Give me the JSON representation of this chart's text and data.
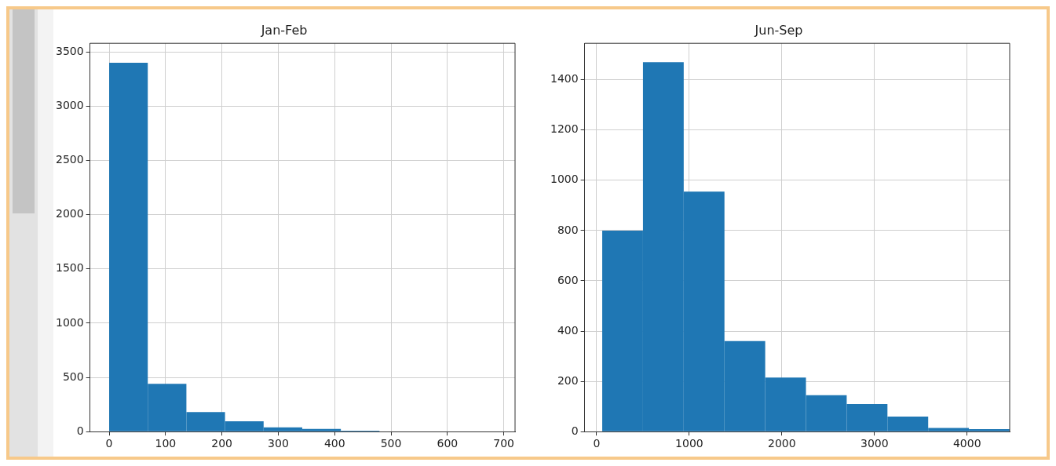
{
  "chart_data": [
    {
      "type": "histogram",
      "title": "Jan-Feb",
      "bins": [
        0,
        68.5,
        137,
        205.5,
        274,
        342.5,
        411,
        479.5,
        548,
        616.5,
        685
      ],
      "values": [
        3400,
        440,
        180,
        95,
        40,
        25,
        8,
        4,
        null,
        null
      ],
      "color": "#1f77b4",
      "xlim": [
        -34,
        720
      ],
      "xticks": [
        0,
        100,
        200,
        300,
        400,
        500,
        600,
        700
      ],
      "ylim": [
        0,
        3580
      ],
      "yticks": [
        0,
        500,
        1000,
        1500,
        2000,
        2500,
        3000,
        3500
      ],
      "grid": true
    },
    {
      "type": "histogram",
      "title": "Jun-Sep",
      "bins": [
        60,
        500,
        940,
        1380,
        1820,
        2260,
        2700,
        3140,
        3580,
        4020,
        4460
      ],
      "values": [
        800,
        1470,
        955,
        360,
        215,
        145,
        110,
        60,
        15,
        10
      ],
      "color": "#1f77b4",
      "xlim": [
        -130,
        4460
      ],
      "xticks": [
        0,
        1000,
        2000,
        3000,
        4000
      ],
      "ylim": [
        0,
        1545
      ],
      "yticks": [
        0,
        200,
        400,
        600,
        800,
        1000,
        1200,
        1400
      ],
      "grid": true
    }
  ]
}
